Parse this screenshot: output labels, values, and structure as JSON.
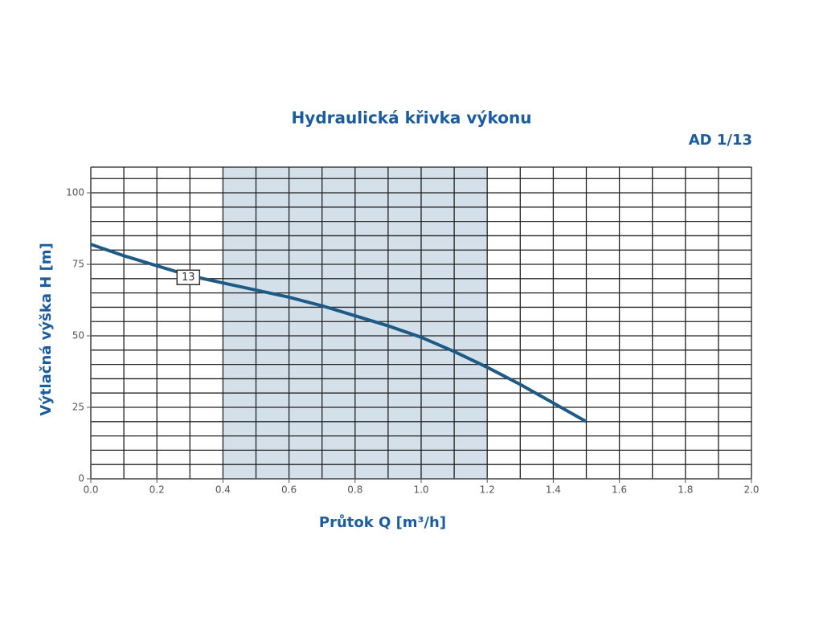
{
  "chart_data": {
    "type": "line",
    "title": "Hydraulická křivka výkonu",
    "subtitle": "AD 1/13",
    "xlabel": "Průtok Q [m³/h]",
    "ylabel": "Výtlačná výška H [m]",
    "x": [
      0.0,
      0.1,
      0.2,
      0.3,
      0.4,
      0.5,
      0.6,
      0.7,
      0.8,
      0.9,
      1.0,
      1.1,
      1.2,
      1.3,
      1.4,
      1.5
    ],
    "series": [
      {
        "name": "13",
        "color": "#1d5a86",
        "values": [
          82,
          78,
          74.5,
          71,
          68.5,
          66,
          63.5,
          60.5,
          57,
          53.5,
          49.5,
          44.5,
          39,
          33,
          26.5,
          20
        ]
      }
    ],
    "shaded_range": [
      0.4,
      1.2
    ],
    "shade_color": "#d3e0ea",
    "xlim": [
      0,
      2
    ],
    "ylim": [
      0,
      109
    ],
    "xticks": [
      {
        "value": 0,
        "label": "0.0"
      },
      0.2,
      0.4,
      0.6,
      0.8,
      {
        "value": 1,
        "label": "1.0"
      },
      1.2,
      1.4,
      1.6,
      1.8,
      {
        "value": 2,
        "label": "2.0"
      }
    ],
    "yticks": [
      0,
      25,
      50,
      75,
      100
    ],
    "x_grid_step": 0.1,
    "y_grid_step": 5,
    "grid": true
  }
}
